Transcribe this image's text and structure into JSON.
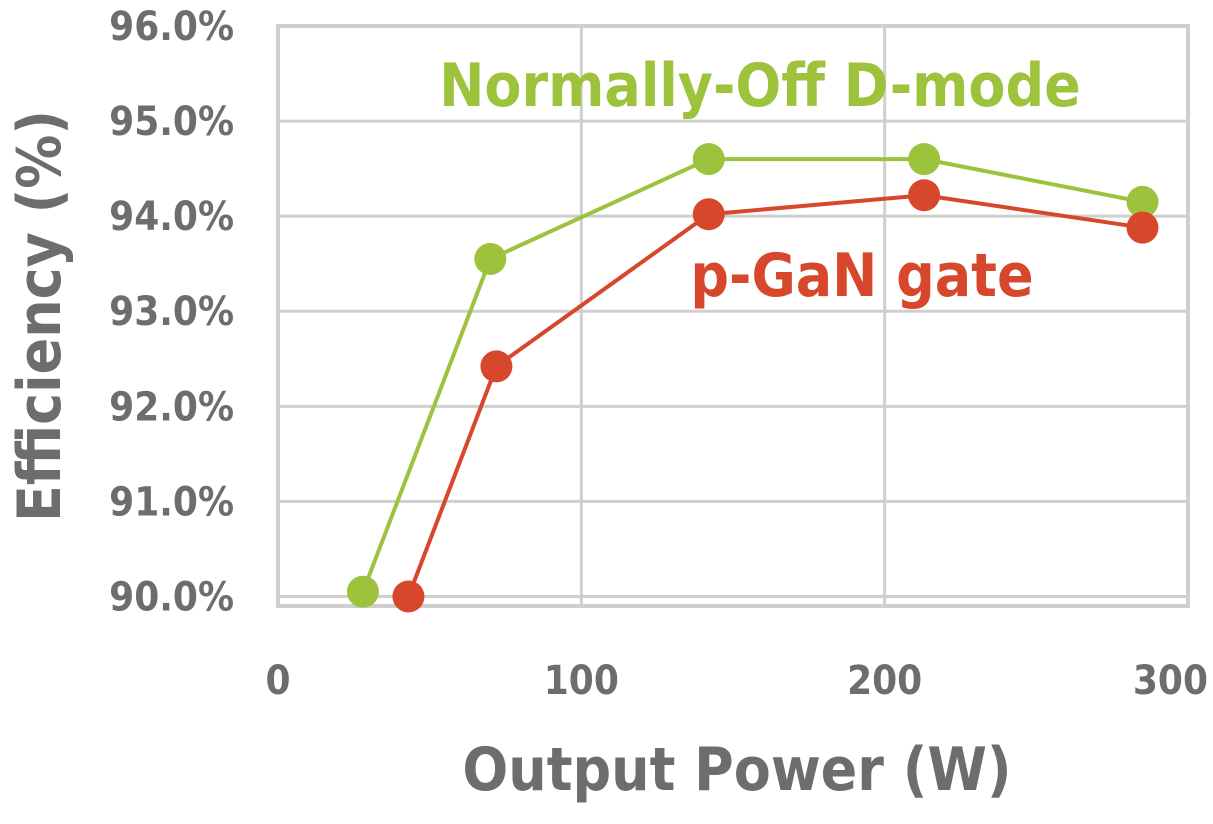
{
  "chart_data": {
    "type": "line",
    "title": "",
    "xlabel": "Output Power (W)",
    "ylabel": "Efficiency (%)",
    "xlim": [
      0,
      300
    ],
    "ylim": [
      89.9,
      96.0
    ],
    "x_ticks": [
      0,
      100,
      200,
      300
    ],
    "x_tick_labels": [
      "0",
      "100",
      "200",
      "300"
    ],
    "y_ticks": [
      90,
      91,
      92,
      93,
      94,
      95,
      96
    ],
    "y_tick_labels": [
      "90.0%",
      "91.0%",
      "92.0%",
      "93.0%",
      "94.0%",
      "95.0%",
      "96.0%"
    ],
    "grid": true,
    "legend": "inline labels",
    "series": [
      {
        "name": "Normally-Off D-mode",
        "color": "#9dc23b",
        "points": [
          {
            "x": 28,
            "y": 90.05
          },
          {
            "x": 70,
            "y": 93.55
          },
          {
            "x": 142,
            "y": 94.6
          },
          {
            "x": 213,
            "y": 94.6
          },
          {
            "x": 285,
            "y": 94.15
          }
        ]
      },
      {
        "name": "p-GaN gate",
        "color": "#d7472b",
        "points": [
          {
            "x": 43,
            "y": 90.0
          },
          {
            "x": 72,
            "y": 92.42
          },
          {
            "x": 142,
            "y": 94.02
          },
          {
            "x": 213,
            "y": 94.22
          },
          {
            "x": 285,
            "y": 93.88
          }
        ]
      }
    ]
  }
}
